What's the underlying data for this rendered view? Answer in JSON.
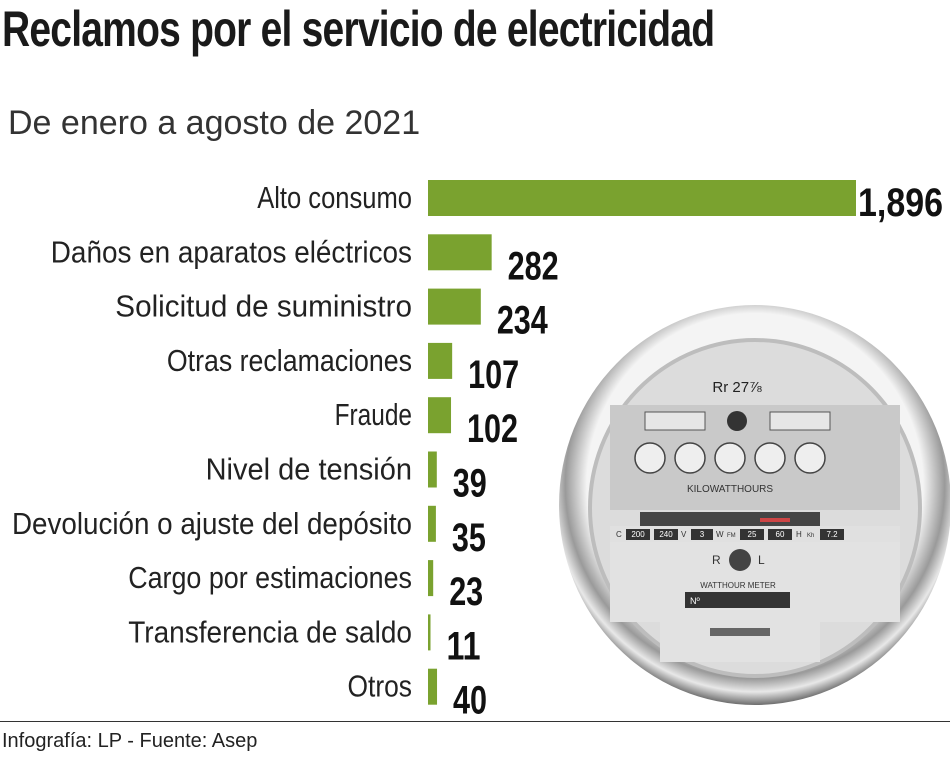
{
  "chart_data": {
    "type": "bar",
    "orientation": "horizontal",
    "title": "Reclamos por el servicio de electricidad",
    "subtitle": "De enero a agosto de 2021",
    "categories": [
      "Alto consumo",
      "Daños en aparatos eléctricos",
      "Solicitud de suministro",
      "Otras reclamaciones",
      "Fraude",
      "Nivel de tensión",
      "Devolución o ajuste del depósito",
      "Cargo por estimaciones",
      "Transferencia de saldo",
      "Otros"
    ],
    "values": [
      1896,
      282,
      234,
      107,
      102,
      39,
      35,
      23,
      11,
      40
    ],
    "value_labels": [
      "1,896",
      "282",
      "234",
      "107",
      "102",
      "39",
      "35",
      "23",
      "11",
      "40"
    ],
    "bar_color": "#7aa22f",
    "grid": false,
    "legend": "none"
  },
  "footer": "Infografía: LP - Fuente: Asep",
  "meter_image_text": {
    "rating": "Rr 27⅞",
    "dial_label": "KILOWATTHOURS",
    "specs": [
      "C",
      "200",
      "240",
      "V",
      "3",
      "W",
      "FM",
      "25",
      "60",
      "H",
      "Kh",
      "7.2"
    ],
    "adjust": [
      "R",
      "L"
    ],
    "name": "WATTHOUR METER",
    "number": "Nº"
  }
}
